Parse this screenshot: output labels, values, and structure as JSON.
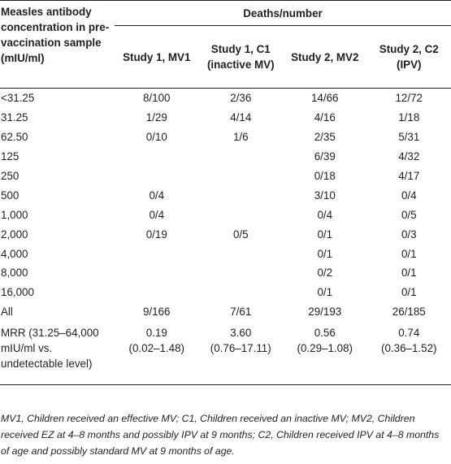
{
  "header": {
    "stub": "Measles antibody concentration in pre-vaccination sample (mIU/ml)",
    "group": "Deaths/number",
    "columns": [
      "Study 1, MV1",
      "Study 1, C1 (inactive MV)",
      "Study 2, MV2",
      "Study 2, C2 (IPV)"
    ]
  },
  "rows": [
    {
      "label": "<31.25",
      "cells": [
        "8/100",
        "2/36",
        "14/66",
        "12/72"
      ]
    },
    {
      "label": "31.25",
      "cells": [
        "1/29",
        "4/14",
        "4/16",
        "1/18"
      ]
    },
    {
      "label": "62.50",
      "cells": [
        "0/10",
        "1/6",
        "2/35",
        "5/31"
      ]
    },
    {
      "label": "125",
      "cells": [
        "",
        "",
        "6/39",
        "4/32"
      ]
    },
    {
      "label": "250",
      "cells": [
        "",
        "",
        "0/18",
        "4/17"
      ]
    },
    {
      "label": "500",
      "cells": [
        "0/4",
        "",
        "3/10",
        "0/4"
      ]
    },
    {
      "label": "1,000",
      "cells": [
        "0/4",
        "",
        "0/4",
        "0/5"
      ]
    },
    {
      "label": "2,000",
      "cells": [
        "0/19",
        "0/5",
        "0/1",
        "0/3"
      ]
    },
    {
      "label": "4,000",
      "cells": [
        "",
        "",
        "0/1",
        "0/1"
      ]
    },
    {
      "label": "8,000",
      "cells": [
        "",
        "",
        "0/2",
        "0/1"
      ]
    },
    {
      "label": "16,000",
      "cells": [
        "",
        "",
        "0/1",
        "0/1"
      ]
    },
    {
      "label": "All",
      "cells": [
        "9/166",
        "7/61",
        "29/193",
        "26/185"
      ]
    }
  ],
  "mrr": {
    "label_lines": [
      "MRR (31.25–64,000",
      "mIU/ml vs.",
      "undetectable level)"
    ],
    "values": [
      "0.19",
      "3.60",
      "0.56",
      "0.74"
    ],
    "cis": [
      "(0.02–1.48)",
      "(0.76–17.11)",
      "(0.29–1.08)",
      "(0.36–1.52)"
    ]
  },
  "footnote": "MV1, Children received an effective MV; C1, Children received an inactive MV; MV2, Children received EZ at 4–8 months and possibly IPV at 9 months; C2, Children received IPV at 4–8 months of age and possibly standard MV at 9 months of age."
}
